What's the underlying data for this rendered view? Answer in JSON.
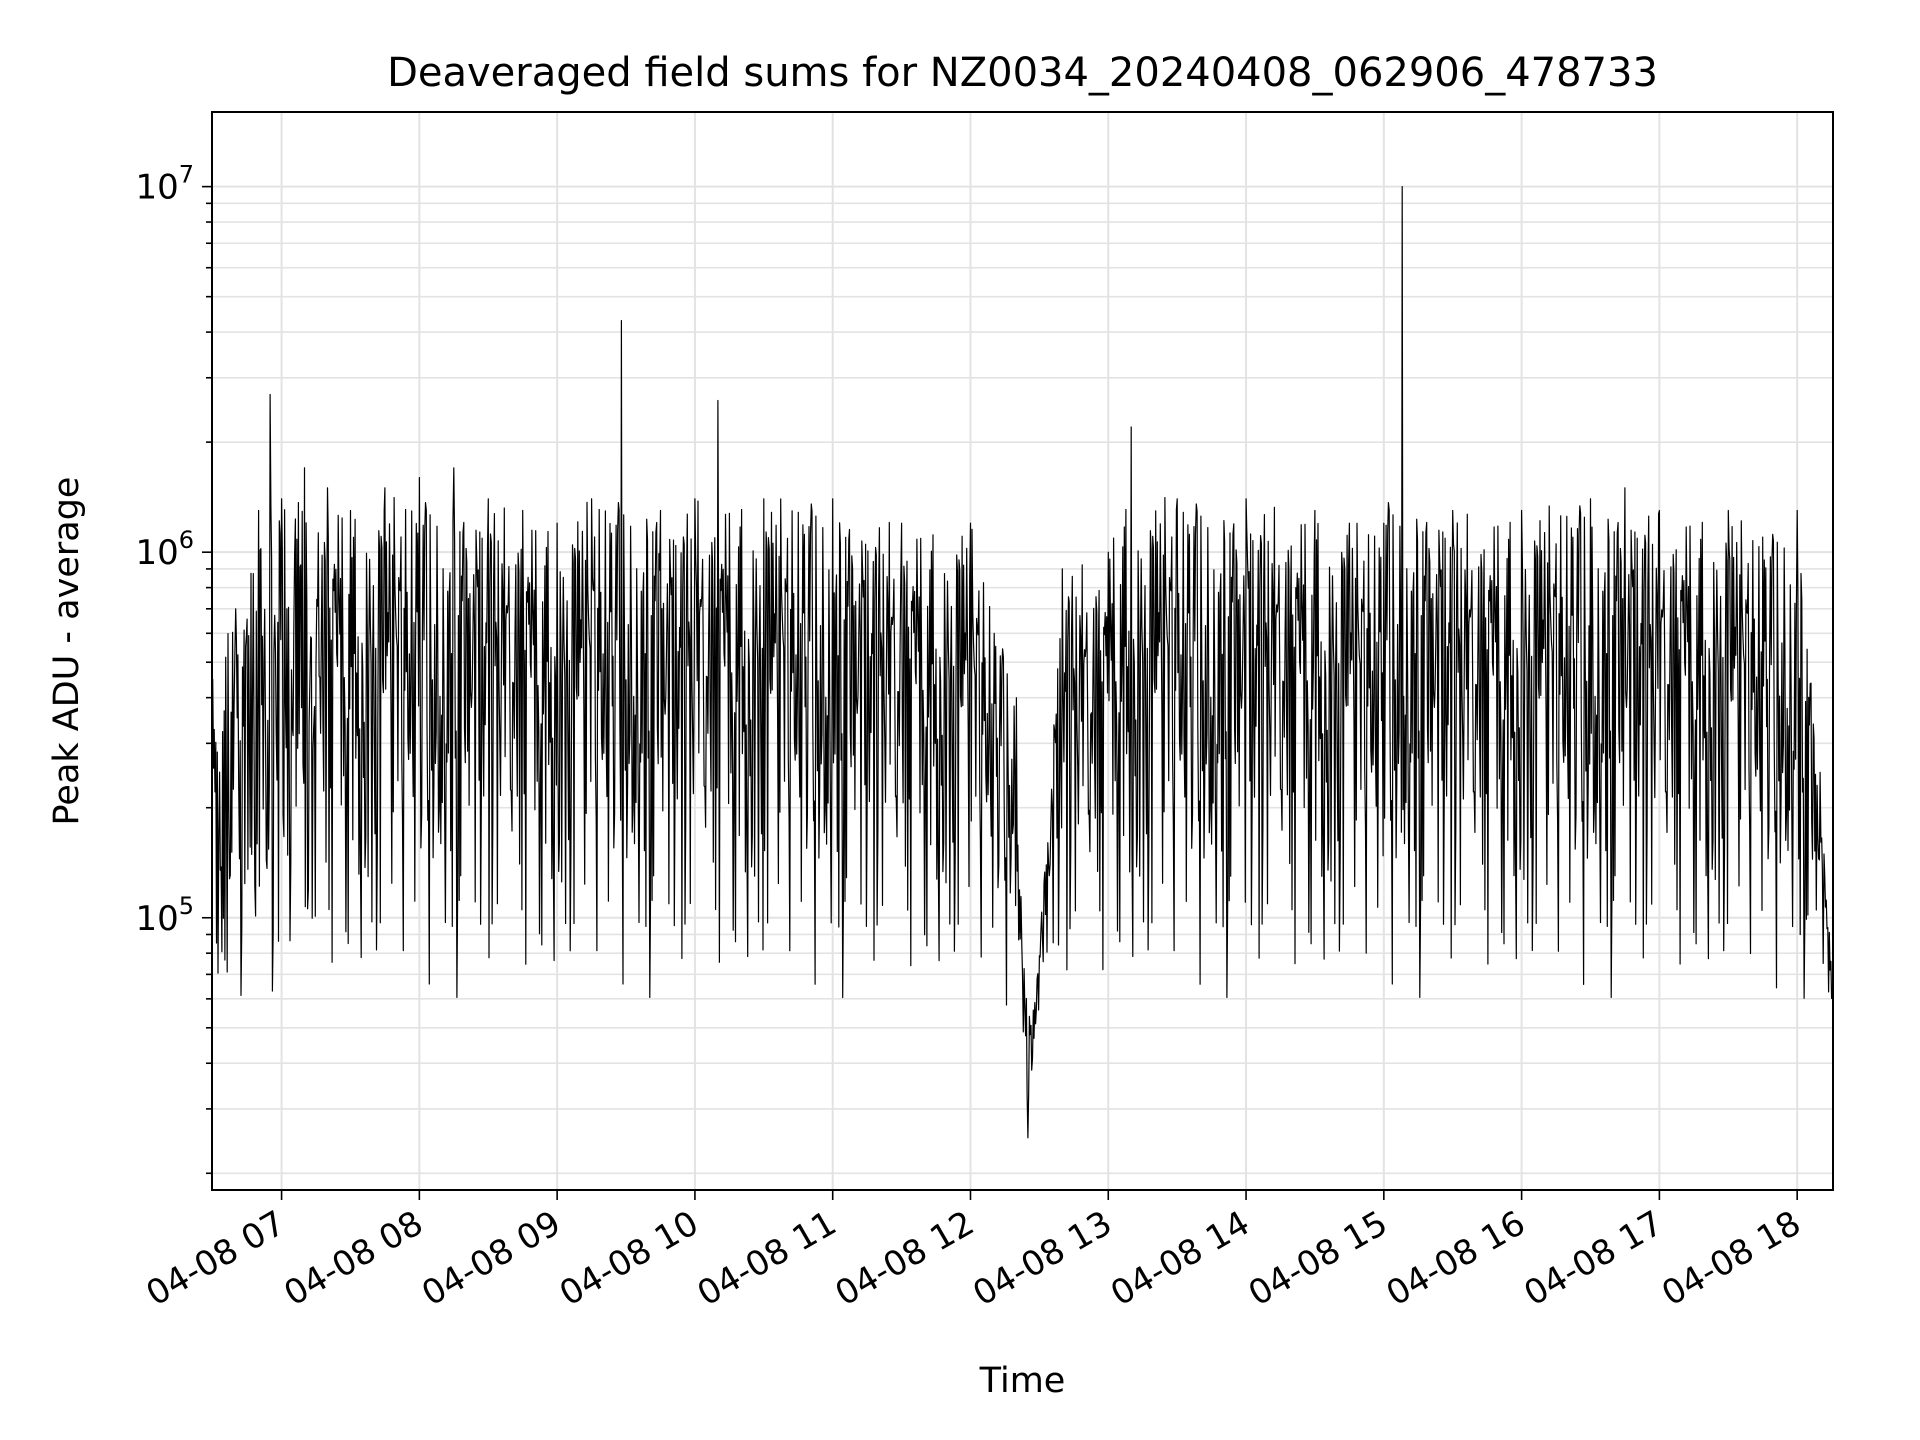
{
  "chart_data": {
    "type": "line",
    "title": "Deaveraged field sums for NZ0034_20240408_062906_478733",
    "xlabel": "Time",
    "ylabel": "Peak ADU - average",
    "y_scale": "log",
    "ylim": [
      18000,
      16000000
    ],
    "xlim": [
      "04-08 06:29:42",
      "04-08 18:15:36"
    ],
    "x_ticks": [
      "04-08 07",
      "04-08 08",
      "04-08 09",
      "04-08 10",
      "04-08 11",
      "04-08 12",
      "04-08 13",
      "04-08 14",
      "04-08 15",
      "04-08 16",
      "04-08 17",
      "04-08 18"
    ],
    "y_ticks": [
      "10^5",
      "10^6",
      "10^7"
    ],
    "grid": "major and minor, light gray",
    "line_color": "#000000",
    "series": [
      {
        "x": [
          "04-08 06:30",
          "04-08 06:40",
          "04-08 06:50",
          "04-08 06:55",
          "04-08 07:00",
          "04-08 07:10",
          "04-08 07:20",
          "04-08 07:30",
          "04-08 07:45",
          "04-08 08:00",
          "04-08 08:15",
          "04-08 08:30",
          "04-08 08:45",
          "04-08 09:00",
          "04-08 09:15",
          "04-08 09:28",
          "04-08 09:45",
          "04-08 10:00",
          "04-08 10:10",
          "04-08 10:30",
          "04-08 11:00",
          "04-08 11:30",
          "04-08 12:00",
          "04-08 12:20",
          "04-08 12:25",
          "04-08 12:40",
          "04-08 13:00",
          "04-08 13:10",
          "04-08 13:30",
          "04-08 14:00",
          "04-08 14:30",
          "04-08 14:45",
          "04-08 15:00",
          "04-08 15:08",
          "04-08 15:30",
          "04-08 16:00",
          "04-08 16:30",
          "04-08 16:45",
          "04-08 17:00",
          "04-08 17:30",
          "04-08 17:45",
          "04-08 18:00",
          "04-08 18:10",
          "04-08 18:15"
        ],
        "y": [
          450000,
          700000,
          1300000,
          2700000,
          1400000,
          1700000,
          1500000,
          1300000,
          1500000,
          1600000,
          1700000,
          1400000,
          1300000,
          1200000,
          1400000,
          4300000,
          1300000,
          1400000,
          2600000,
          1400000,
          1400000,
          1200000,
          1200000,
          400000,
          25000,
          900000,
          1000000,
          2200000,
          1400000,
          1400000,
          1300000,
          1200000,
          1200000,
          10000000,
          1300000,
          1300000,
          1400000,
          1500000,
          1300000,
          1300000,
          1100000,
          1300000,
          250000,
          60000
        ]
      }
    ]
  }
}
